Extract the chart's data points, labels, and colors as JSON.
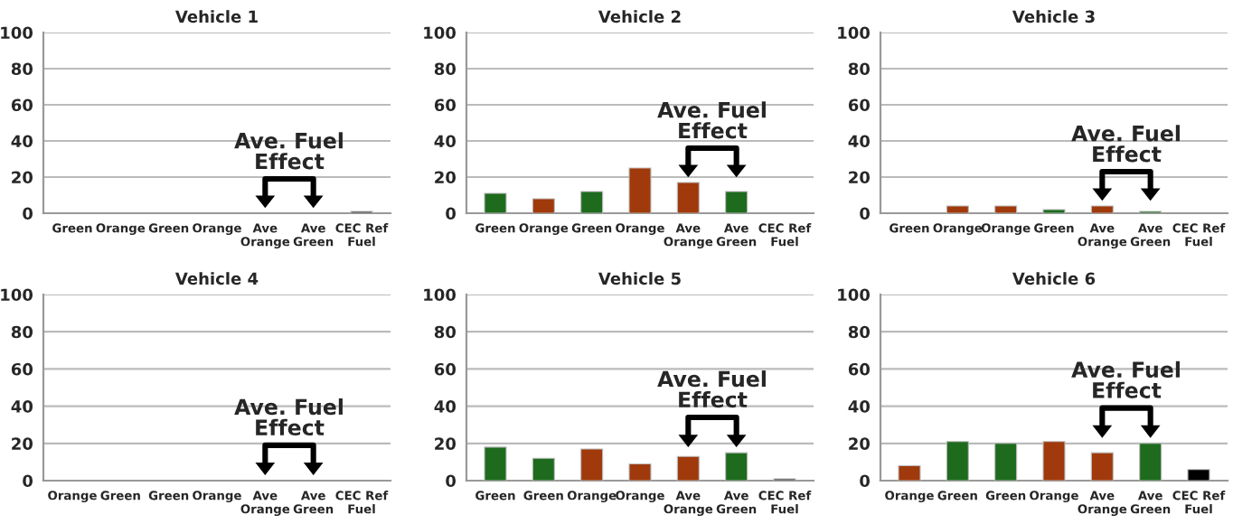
{
  "chart_data": [
    {
      "type": "bar",
      "title": "Vehicle 1",
      "categories": [
        "Green",
        "Orange",
        "Green",
        "Orange",
        "Ave\nOrange",
        "Ave\nGreen",
        "CEC Ref\nFuel"
      ],
      "values": [
        null,
        null,
        null,
        null,
        null,
        null,
        1
      ],
      "colors": [
        "#1e6b1e",
        "#a0390b",
        "#1e6b1e",
        "#a0390b",
        "#a0390b",
        "#1e6b1e",
        "#404040"
      ],
      "ylim": [
        0,
        100
      ],
      "yticks": [
        0,
        20,
        40,
        60,
        80,
        100
      ],
      "grid": "y",
      "annotations": [
        "Ave. Fuel\nEffect"
      ]
    },
    {
      "type": "bar",
      "title": "Vehicle 2",
      "categories": [
        "Green",
        "Orange",
        "Green",
        "Orange",
        "Ave\nOrange",
        "Ave\nGreen",
        "CEC Ref\nFuel"
      ],
      "values": [
        11,
        8,
        12,
        25,
        17,
        12,
        null
      ],
      "colors": [
        "#1e6b1e",
        "#a0390b",
        "#1e6b1e",
        "#a0390b",
        "#a0390b",
        "#1e6b1e",
        "#404040"
      ],
      "ylim": [
        0,
        100
      ],
      "yticks": [
        0,
        20,
        40,
        60,
        80,
        100
      ],
      "grid": "y",
      "annotations": [
        "Ave. Fuel\nEffect"
      ]
    },
    {
      "type": "bar",
      "title": "Vehicle 3",
      "categories": [
        "Green",
        "Orange",
        "Orange",
        "Green",
        "Ave\nOrange",
        "Ave\nGreen",
        "CEC Ref\nFuel"
      ],
      "values": [
        null,
        4,
        4,
        2,
        4,
        1,
        null
      ],
      "colors": [
        "#1e6b1e",
        "#a0390b",
        "#a0390b",
        "#1e6b1e",
        "#a0390b",
        "#1e6b1e",
        "#404040"
      ],
      "ylim": [
        0,
        100
      ],
      "yticks": [
        0,
        20,
        40,
        60,
        80,
        100
      ],
      "grid": "y",
      "annotations": [
        "Ave. Fuel\nEffect"
      ]
    },
    {
      "type": "bar",
      "title": "Vehicle 4",
      "categories": [
        "Orange",
        "Green",
        "Green",
        "Orange",
        "Ave\nOrange",
        "Ave\nGreen",
        "CEC Ref\nFuel"
      ],
      "values": [
        null,
        null,
        null,
        null,
        null,
        null,
        null
      ],
      "colors": [
        "#a0390b",
        "#1e6b1e",
        "#1e6b1e",
        "#a0390b",
        "#a0390b",
        "#1e6b1e",
        "#404040"
      ],
      "ylim": [
        0,
        100
      ],
      "yticks": [
        0,
        20,
        40,
        60,
        80,
        100
      ],
      "grid": "y",
      "annotations": [
        "Ave. Fuel\nEffect"
      ]
    },
    {
      "type": "bar",
      "title": "Vehicle 5",
      "categories": [
        "Green",
        "Green",
        "Orange",
        "Orange",
        "Ave\nOrange",
        "Ave\nGreen",
        "CEC Ref\nFuel"
      ],
      "values": [
        18,
        12,
        17,
        9,
        13,
        15,
        1
      ],
      "colors": [
        "#1e6b1e",
        "#1e6b1e",
        "#a0390b",
        "#a0390b",
        "#a0390b",
        "#1e6b1e",
        "#404040"
      ],
      "ylim": [
        0,
        100
      ],
      "yticks": [
        0,
        20,
        40,
        60,
        80,
        100
      ],
      "grid": "y",
      "annotations": [
        "Ave. Fuel\nEffect"
      ]
    },
    {
      "type": "bar",
      "title": "Vehicle 6",
      "categories": [
        "Orange",
        "Green",
        "Green",
        "Orange",
        "Ave\nOrange",
        "Ave\nGreen",
        "CEC Ref\nFuel"
      ],
      "values": [
        8,
        21,
        20,
        21,
        15,
        20,
        6
      ],
      "colors": [
        "#a0390b",
        "#1e6b1e",
        "#1e6b1e",
        "#a0390b",
        "#a0390b",
        "#1e6b1e",
        "#000000"
      ],
      "ylim": [
        0,
        100
      ],
      "yticks": [
        0,
        20,
        40,
        60,
        80,
        100
      ],
      "grid": "y",
      "annotations": [
        "Ave. Fuel\nEffect"
      ]
    }
  ]
}
